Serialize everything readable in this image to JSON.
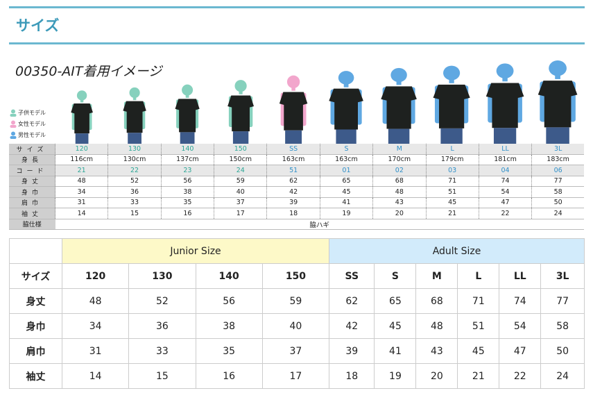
{
  "header": {
    "title": "サイズ"
  },
  "image_title": "00350-AIT着用イメージ",
  "colors": {
    "accent": "#3c9ab9",
    "kid": "#86d1bd",
    "female": "#f2a6cc",
    "male": "#5fa8e2",
    "junior_bg": "#fdf9c8",
    "adult_bg": "#d2ebfb"
  },
  "legend": [
    {
      "label": "子供モデル",
      "type": "kid"
    },
    {
      "label": "女性モデル",
      "type": "female"
    },
    {
      "label": "男性モデル",
      "type": "male"
    }
  ],
  "models": [
    "kid",
    "kid",
    "kid",
    "kid",
    "female",
    "male",
    "male",
    "male",
    "male",
    "male"
  ],
  "spec_table": {
    "rows": [
      {
        "label": "サイズ",
        "values": [
          "120",
          "130",
          "140",
          "150",
          "SS",
          "S",
          "M",
          "L",
          "LL",
          "3L"
        ],
        "shade": true,
        "colored": true
      },
      {
        "label": "身長",
        "values": [
          "116cm",
          "130cm",
          "137cm",
          "150cm",
          "163cm",
          "163cm",
          "170cm",
          "179cm",
          "181cm",
          "183cm"
        ]
      },
      {
        "label": "コード",
        "values": [
          "21",
          "22",
          "23",
          "24",
          "51",
          "01",
          "02",
          "03",
          "04",
          "06"
        ],
        "shade": true,
        "colored": true
      },
      {
        "label": "身丈",
        "values": [
          "48",
          "52",
          "56",
          "59",
          "62",
          "65",
          "68",
          "71",
          "74",
          "77"
        ]
      },
      {
        "label": "身巾",
        "values": [
          "34",
          "36",
          "38",
          "40",
          "42",
          "45",
          "48",
          "51",
          "54",
          "58"
        ]
      },
      {
        "label": "肩巾",
        "values": [
          "31",
          "33",
          "35",
          "37",
          "39",
          "41",
          "43",
          "45",
          "47",
          "50"
        ]
      },
      {
        "label": "袖丈",
        "values": [
          "14",
          "15",
          "16",
          "17",
          "18",
          "19",
          "20",
          "21",
          "22",
          "24"
        ]
      }
    ],
    "side_label": "脇仕様",
    "side_value": "脇ハギ"
  },
  "size_table": {
    "junior_label": "Junior Size",
    "adult_label": "Adult Size",
    "rows": [
      {
        "label": "サイズ",
        "values": [
          "120",
          "130",
          "140",
          "150",
          "SS",
          "S",
          "M",
          "L",
          "LL",
          "3L"
        ]
      },
      {
        "label": "身丈",
        "values": [
          "48",
          "52",
          "56",
          "59",
          "62",
          "65",
          "68",
          "71",
          "74",
          "77"
        ]
      },
      {
        "label": "身巾",
        "values": [
          "34",
          "36",
          "38",
          "40",
          "42",
          "45",
          "48",
          "51",
          "54",
          "58"
        ]
      },
      {
        "label": "肩巾",
        "values": [
          "31",
          "33",
          "35",
          "37",
          "39",
          "41",
          "43",
          "45",
          "47",
          "50"
        ]
      },
      {
        "label": "袖丈",
        "values": [
          "14",
          "15",
          "16",
          "17",
          "18",
          "19",
          "20",
          "21",
          "22",
          "24"
        ]
      }
    ]
  }
}
